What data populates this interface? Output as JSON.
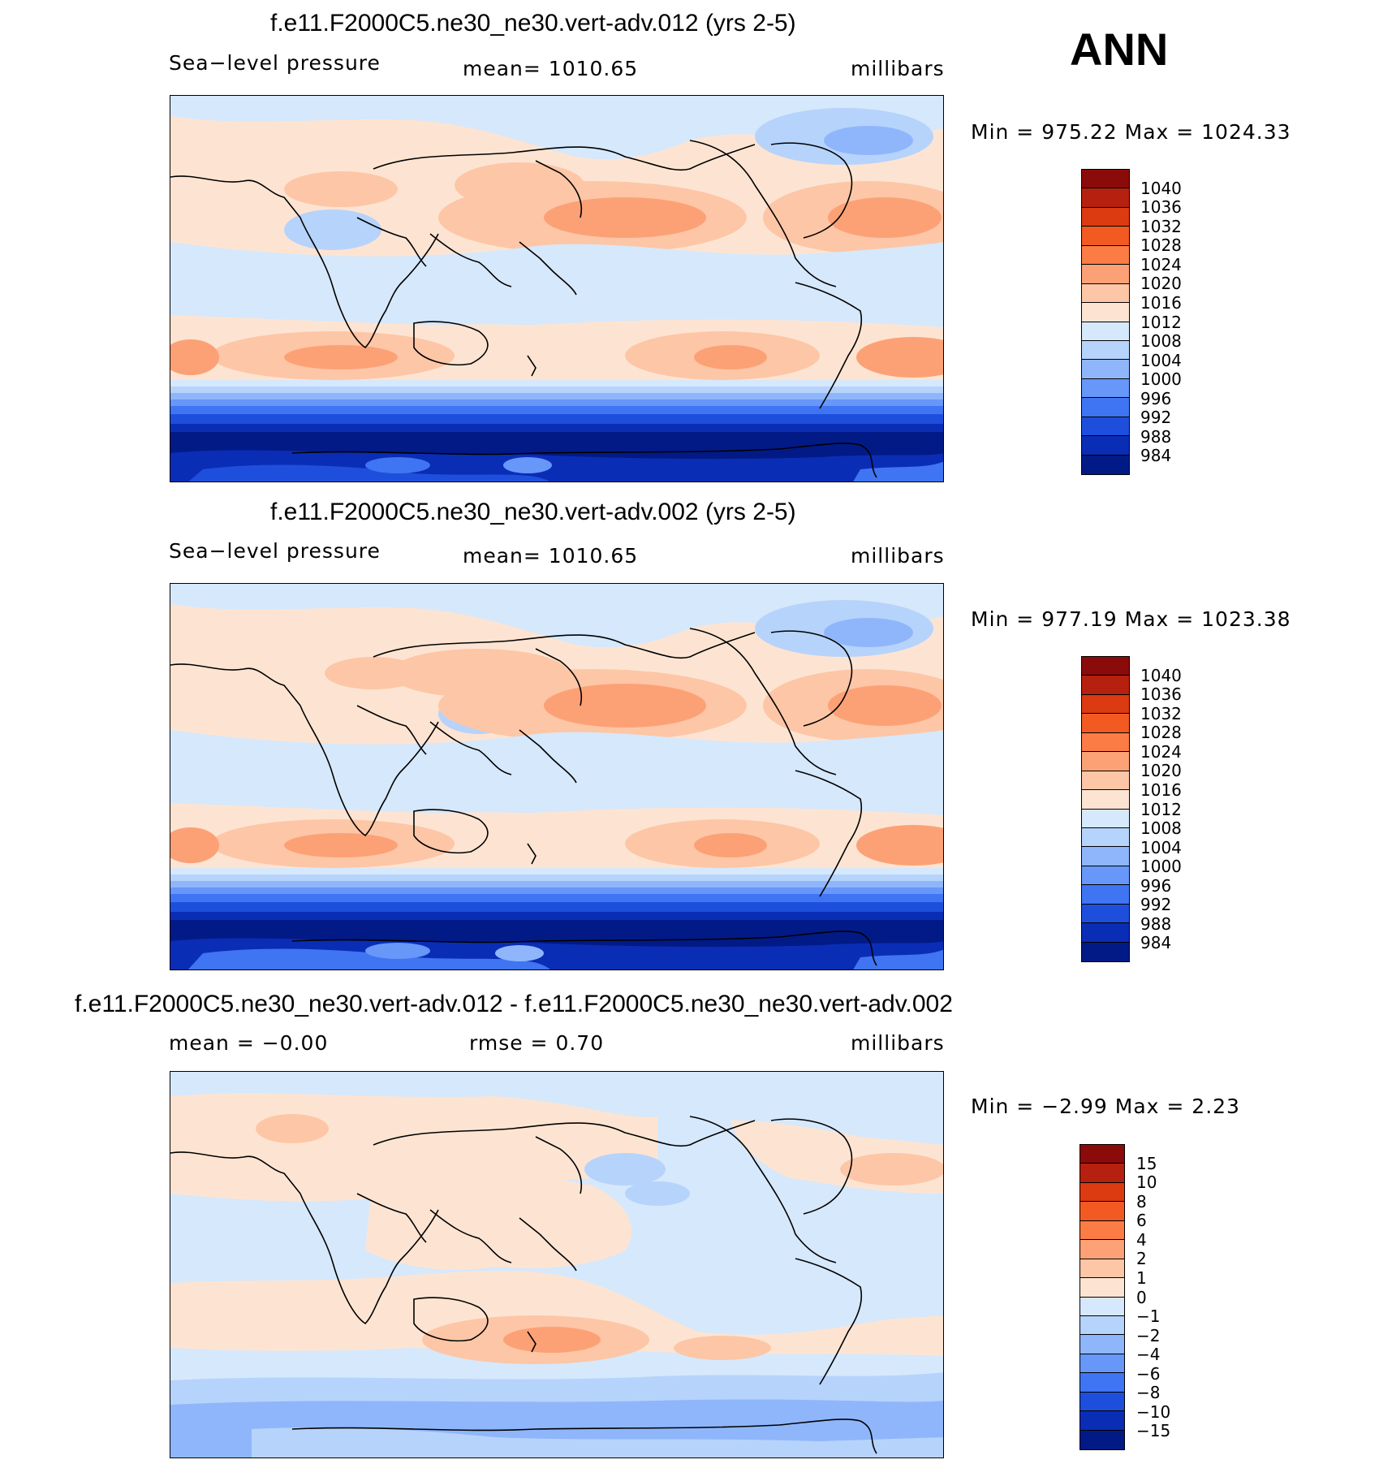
{
  "season": "ANN",
  "panels": [
    {
      "id": "p1",
      "title": "f.e11.F2000C5.ne30_ne30.vert-adv.012 (yrs 2-5)",
      "left_label": "Sea−level pressure",
      "center_label": "mean=  1010.65",
      "right_label": "millibars",
      "minmax": "Min  =  975.22  Max  =  1024.33",
      "kind": "abs"
    },
    {
      "id": "p2",
      "title": "f.e11.F2000C5.ne30_ne30.vert-adv.002 (yrs 2-5)",
      "left_label": "Sea−level pressure",
      "center_label": "mean=  1010.65",
      "right_label": "millibars",
      "minmax": "Min  =  977.19  Max  =  1023.38",
      "kind": "abs"
    },
    {
      "id": "p3",
      "title": "f.e11.F2000C5.ne30_ne30.vert-adv.012 - f.e11.F2000C5.ne30_ne30.vert-adv.002",
      "left_label": "mean  =    −0.00",
      "center_label": "rmse  =     0.70",
      "right_label": "millibars",
      "minmax": "Min  =    −2.99  Max  =     2.23",
      "kind": "diff"
    }
  ],
  "colorbars": {
    "abs": {
      "labels": [
        "1040",
        "1036",
        "1032",
        "1028",
        "1024",
        "1020",
        "1016",
        "1012",
        "1008",
        "1004",
        "1000",
        "996",
        "992",
        "988",
        "984"
      ],
      "colors": [
        "#8b0a0a",
        "#b5210e",
        "#dc3a10",
        "#f25a22",
        "#fb7c45",
        "#fca176",
        "#fdc6a6",
        "#fde4d2",
        "#d6e8fb",
        "#b6d3fb",
        "#8fb6fb",
        "#6697f9",
        "#3f74f3",
        "#1e4fdc",
        "#0a2db6",
        "#021a86"
      ]
    },
    "diff": {
      "labels": [
        "15",
        "10",
        "8",
        "6",
        "4",
        "2",
        "1",
        "0",
        "−1",
        "−2",
        "−4",
        "−6",
        "−8",
        "−10",
        "−15"
      ],
      "colors": [
        "#8b0a0a",
        "#b5210e",
        "#dc3a10",
        "#f25a22",
        "#fb7c45",
        "#fca176",
        "#fdc6a6",
        "#fde4d2",
        "#d6e8fb",
        "#b6d3fb",
        "#8fb6fb",
        "#6697f9",
        "#3f74f3",
        "#1e4fdc",
        "#0a2db6",
        "#021a86"
      ]
    }
  }
}
